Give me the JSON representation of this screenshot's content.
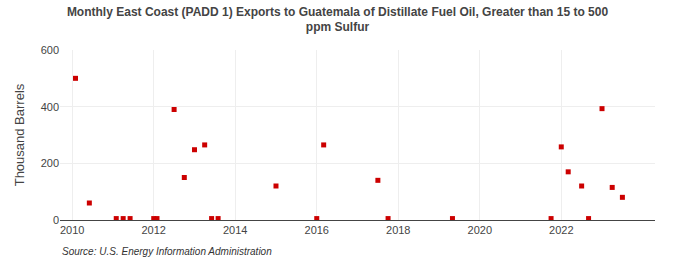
{
  "chart_data": {
    "type": "scatter",
    "title": "Monthly East Coast (PADD 1) Exports to Guatemala of Distillate Fuel Oil, Greater than 15 to 500\nppm Sulfur",
    "ylabel": "Thousand Barrels",
    "annotations": [
      "Source: U.S. Energy Information Administration"
    ],
    "x": [
      2010.08,
      2010.42,
      2011.08,
      2011.25,
      2011.42,
      2012.0,
      2012.08,
      2012.5,
      2012.75,
      2013.0,
      2013.25,
      2013.42,
      2013.58,
      2015.0,
      2016.0,
      2016.17,
      2017.5,
      2017.75,
      2019.33,
      2021.75,
      2022.0,
      2022.17,
      2022.5,
      2022.67,
      2023.0,
      2023.25,
      2023.5
    ],
    "values": [
      500,
      60,
      5,
      5,
      5,
      5,
      5,
      390,
      150,
      248,
      265,
      5,
      5,
      120,
      5,
      265,
      140,
      5,
      5,
      5,
      258,
      170,
      120,
      5,
      393,
      115,
      80
    ],
    "color": "#cc0000",
    "marker": "square",
    "xlim": [
      2009.7,
      2024.3
    ],
    "xticks": [
      2010,
      2012,
      2014,
      2016,
      2018,
      2020,
      2022
    ],
    "ylim": [
      0,
      600
    ],
    "yticks": [
      0,
      200,
      400,
      600
    ],
    "grid": true
  }
}
